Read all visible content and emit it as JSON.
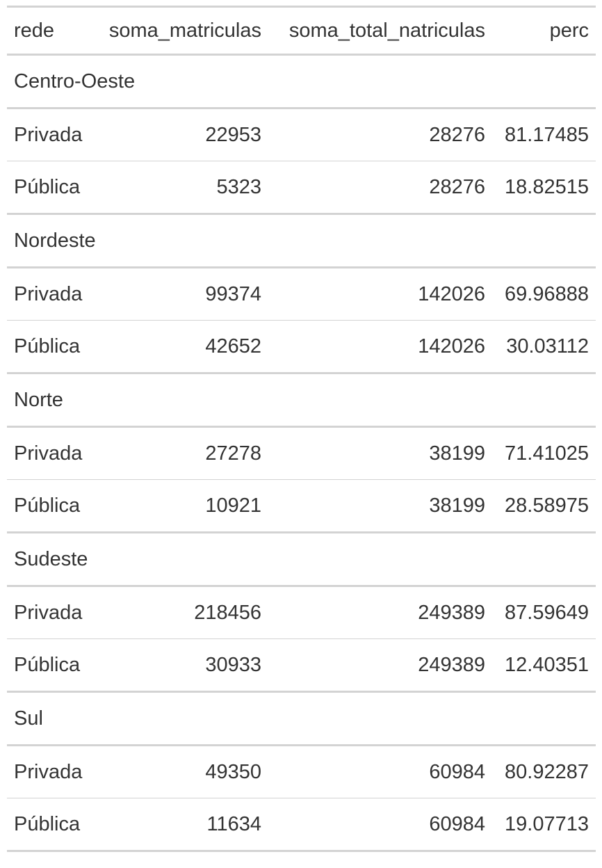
{
  "table": {
    "headers": [
      "rede",
      "soma_matriculas",
      "soma_total_natriculas",
      "perc"
    ],
    "groups": [
      {
        "name": "Centro-Oeste",
        "rows": [
          [
            "Privada",
            "22953",
            "28276",
            "81.17485"
          ],
          [
            "Pública",
            "5323",
            "28276",
            "18.82515"
          ]
        ]
      },
      {
        "name": "Nordeste",
        "rows": [
          [
            "Privada",
            "99374",
            "142026",
            "69.96888"
          ],
          [
            "Pública",
            "42652",
            "142026",
            "30.03112"
          ]
        ]
      },
      {
        "name": "Norte",
        "rows": [
          [
            "Privada",
            "27278",
            "38199",
            "71.41025"
          ],
          [
            "Pública",
            "10921",
            "38199",
            "28.58975"
          ]
        ]
      },
      {
        "name": "Sudeste",
        "rows": [
          [
            "Privada",
            "218456",
            "249389",
            "87.59649"
          ],
          [
            "Pública",
            "30933",
            "249389",
            "12.40351"
          ]
        ]
      },
      {
        "name": "Sul",
        "rows": [
          [
            "Privada",
            "49350",
            "60984",
            "80.92287"
          ],
          [
            "Pública",
            "11634",
            "60984",
            "19.07713"
          ]
        ]
      }
    ]
  }
}
